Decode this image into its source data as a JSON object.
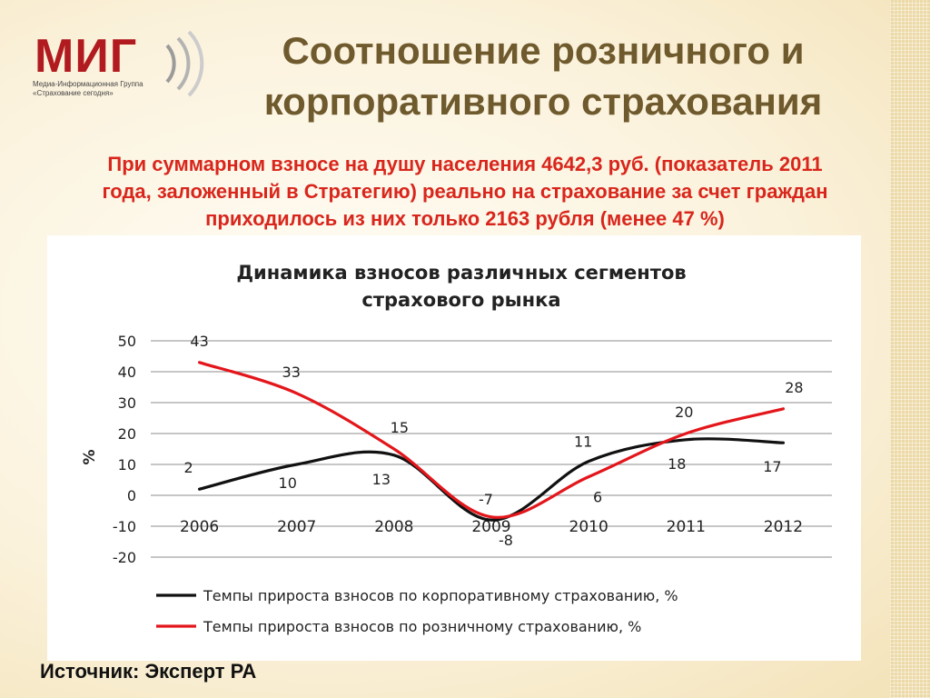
{
  "header": {
    "title_lines": [
      "Соотношение розничного и",
      "корпоративного страхования"
    ]
  },
  "logo": {
    "word": "МИГ",
    "line1": "Медиа-Информационная Группа",
    "line2": "«Страхование сегодня»"
  },
  "intro": {
    "lines": [
      "При суммарном взносе на душу населения 4642,3 руб. (показатель 2011",
      "года, заложенный в Стратегию) реально на страхование за счет граждан",
      "приходилось из них только 2163 рубля (менее 47 %)"
    ]
  },
  "colors": {
    "corporate": "#111111",
    "retail": "#e3161b",
    "title": "#6f5a2e",
    "subtitle": "#d9261c"
  },
  "chart_data": {
    "type": "line",
    "title": [
      "Динамика взносов различных сегментов",
      "страхового рынка"
    ],
    "ylabel": "%",
    "xlabel": "",
    "ylim": [
      -20,
      50
    ],
    "yticks": [
      50,
      40,
      30,
      20,
      10,
      0,
      -10,
      -20
    ],
    "categories": [
      "2006",
      "2007",
      "2008",
      "2009",
      "2010",
      "2011",
      "2012"
    ],
    "grid": true,
    "legend_position": "bottom",
    "series": [
      {
        "name": "Темпы прироста взносов по корпоративному страхованию, %",
        "color": "#111111",
        "values": [
          2,
          10,
          13,
          -8,
          11,
          18,
          17
        ],
        "labels": [
          "2",
          "10",
          "13",
          "-8",
          "11",
          "18",
          "17"
        ]
      },
      {
        "name": "Темпы прироста взносов по розничному страхованию, %",
        "color": "#e3161b",
        "values": [
          43,
          33,
          15,
          -7,
          6,
          20,
          28
        ],
        "labels": [
          "43",
          "33",
          "15",
          "-7",
          "6",
          "20",
          "28"
        ]
      }
    ]
  },
  "footer": {
    "source": "Источник: Эксперт РА"
  }
}
